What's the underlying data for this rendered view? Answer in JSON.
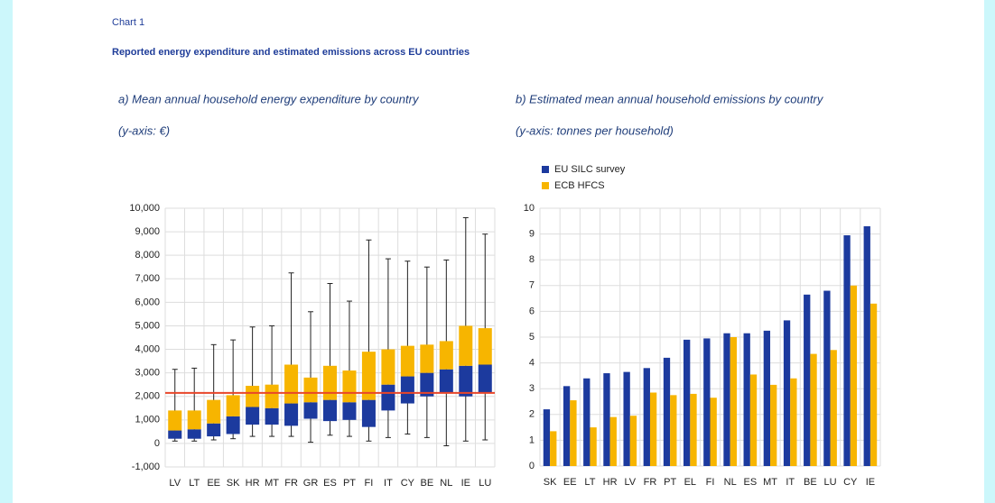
{
  "header": {
    "label": "Chart 1",
    "title": "Reported energy expenditure and estimated emissions across EU countries"
  },
  "chart_data": [
    {
      "type": "box",
      "title": "a) Mean annual household energy expenditure by country",
      "y_label": "(y-axis: €)",
      "categories": [
        "LV",
        "LT",
        "EE",
        "SK",
        "HR",
        "MT",
        "FR",
        "GR",
        "ES",
        "PT",
        "FI",
        "IT",
        "CY",
        "BE",
        "NL",
        "IE",
        "LU"
      ],
      "whisker_low": [
        100,
        100,
        150,
        200,
        300,
        300,
        300,
        50,
        350,
        300,
        100,
        250,
        400,
        250,
        -100,
        100,
        150
      ],
      "box_low": [
        200,
        200,
        300,
        400,
        800,
        800,
        750,
        1050,
        950,
        1000,
        700,
        1400,
        1700,
        2000,
        2150,
        2000,
        2150
      ],
      "median": [
        550,
        600,
        850,
        1150,
        1550,
        1500,
        1700,
        1750,
        1850,
        1750,
        1850,
        2500,
        2850,
        3000,
        3150,
        3300,
        3350
      ],
      "box_high": [
        1400,
        1400,
        1850,
        2050,
        2450,
        2500,
        3350,
        2800,
        3300,
        3100,
        3900,
        4000,
        4150,
        4200,
        4350,
        5000,
        4900
      ],
      "whisker_high": [
        3150,
        3200,
        4200,
        4400,
        4950,
        5000,
        7250,
        5600,
        6800,
        6050,
        8650,
        7850,
        7750,
        7500,
        7800,
        9600,
        8900
      ],
      "lower_color": "#1c3a9e",
      "upper_color": "#f7b500",
      "whisker_color": "#222222",
      "reference_line": {
        "value": 2150,
        "color": "#e8462a"
      },
      "ylim": [
        -1000,
        10000
      ],
      "yticks": [
        {
          "value": -1000,
          "label": "-1,000"
        },
        0,
        {
          "value": 1000,
          "label": "1,000"
        },
        {
          "value": 2000,
          "label": "2,000"
        },
        {
          "value": 3000,
          "label": "3,000"
        },
        {
          "value": 4000,
          "label": "4,000"
        },
        {
          "value": 5000,
          "label": "5,000"
        },
        {
          "value": 6000,
          "label": "6,000"
        },
        {
          "value": 7000,
          "label": "7,000"
        },
        {
          "value": 8000,
          "label": "8,000"
        },
        {
          "value": 9000,
          "label": "9,000"
        },
        {
          "value": 10000,
          "label": "10,000"
        }
      ],
      "grid": true
    },
    {
      "type": "bar",
      "title": "b) Estimated mean annual household emissions by country",
      "y_label": "(y-axis: tonnes per household)",
      "categories": [
        "SK",
        "EE",
        "LT",
        "HR",
        "LV",
        "FR",
        "PT",
        "EL",
        "FI",
        "NL",
        "ES",
        "MT",
        "IT",
        "BE",
        "LU",
        "CY",
        "IE"
      ],
      "series": [
        {
          "name": "EU SILC survey",
          "color": "#1c3a9e",
          "values": [
            2.2,
            3.1,
            3.4,
            3.6,
            3.65,
            3.8,
            4.2,
            4.9,
            4.95,
            5.15,
            5.15,
            5.25,
            5.65,
            6.65,
            6.8,
            8.95,
            9.3
          ]
        },
        {
          "name": "ECB HFCS",
          "color": "#f7b500",
          "values": [
            1.35,
            2.55,
            1.5,
            1.9,
            1.95,
            2.85,
            2.75,
            2.8,
            2.65,
            5.0,
            3.55,
            3.15,
            3.4,
            4.35,
            4.5,
            7.0,
            6.3
          ]
        }
      ],
      "ylim": [
        0,
        10
      ],
      "yticks": [
        0,
        1,
        2,
        3,
        4,
        5,
        6,
        7,
        8,
        9,
        10
      ],
      "grid": true,
      "legend": "top-left"
    }
  ]
}
